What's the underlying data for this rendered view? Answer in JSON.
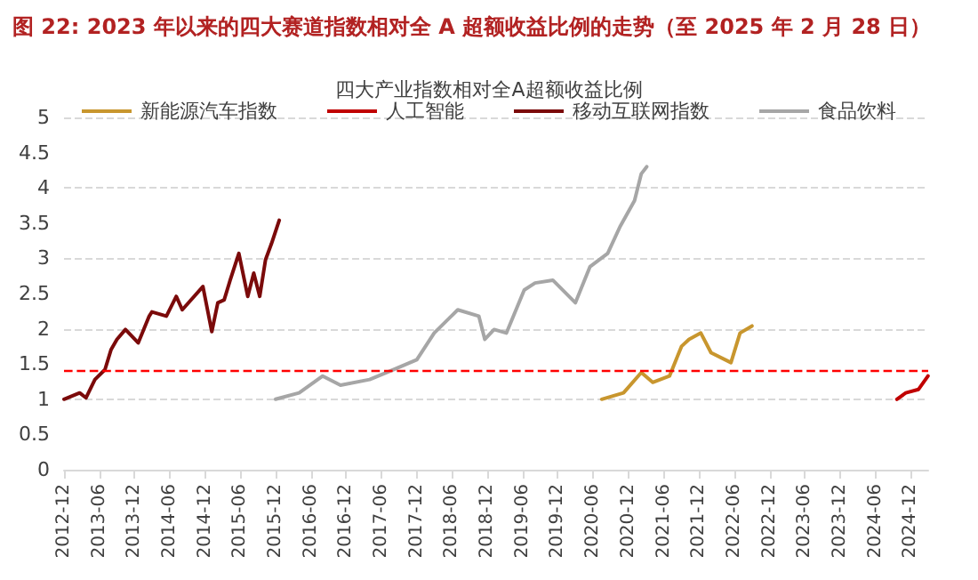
{
  "chart_data": {
    "type": "line",
    "title": "图 22: 2023 年以来的四大赛道指数相对全 A 超额收益比例的走势（至 2025 年 2 月 28 日）",
    "subtitle": "四大产业指数相对全A超额收益比例",
    "series": [
      {
        "name": "新能源汽车指数",
        "color": "#c8962e",
        "x": [
          "2020-07-15",
          "2020-11-05",
          "2021-02-05",
          "2021-04-05",
          "2021-07-01",
          "2021-09-01",
          "2021-10-10",
          "2021-12-10",
          "2022-02-01",
          "2022-05-15",
          "2022-07-01",
          "2022-09-01"
        ],
        "values": [
          1.0,
          1.09,
          1.38,
          1.24,
          1.33,
          1.75,
          1.85,
          1.94,
          1.66,
          1.52,
          1.94,
          2.04
        ]
      },
      {
        "name": "人工智能",
        "color": "#c00000",
        "x": [
          "2024-09-20",
          "2024-11-05",
          "2025-01-10",
          "2025-02-28"
        ],
        "values": [
          1.0,
          1.09,
          1.14,
          1.33
        ]
      },
      {
        "name": "移动互联网指数",
        "color": "#7b0a0a",
        "x": [
          "2012-12-01",
          "2013-02-20",
          "2013-03-25",
          "2013-05-10",
          "2013-07-01",
          "2013-08-01",
          "2013-09-01",
          "2013-10-15",
          "2013-12-20",
          "2014-02-15",
          "2014-03-01",
          "2014-05-15",
          "2014-07-05",
          "2014-08-05",
          "2014-11-20",
          "2015-01-05",
          "2015-02-05",
          "2015-03-10",
          "2015-04-10",
          "2015-05-25",
          "2015-07-10",
          "2015-08-10",
          "2015-09-10",
          "2015-10-10",
          "2015-11-10",
          "2015-12-20"
        ],
        "values": [
          1.0,
          1.09,
          1.02,
          1.28,
          1.42,
          1.7,
          1.85,
          1.99,
          1.8,
          2.18,
          2.24,
          2.18,
          2.46,
          2.27,
          2.6,
          1.96,
          2.37,
          2.41,
          2.69,
          3.07,
          2.46,
          2.79,
          2.46,
          2.98,
          3.21,
          3.54
        ]
      },
      {
        "name": "食品饮料",
        "color": "#a6a6a6",
        "x": [
          "2015-12-01",
          "2016-04-01",
          "2016-08-01",
          "2016-11-01",
          "2017-04-01",
          "2017-08-01",
          "2017-12-01",
          "2018-03-01",
          "2018-07-01",
          "2018-10-18",
          "2018-11-18",
          "2019-01-05",
          "2019-03-10",
          "2019-06-10",
          "2019-08-05",
          "2019-11-05",
          "2020-03-01",
          "2020-05-15",
          "2020-08-15",
          "2020-10-18",
          "2021-01-01",
          "2021-02-05",
          "2021-03-05"
        ],
        "values": [
          1.0,
          1.09,
          1.33,
          1.2,
          1.28,
          1.42,
          1.56,
          1.94,
          2.27,
          2.18,
          1.85,
          1.99,
          1.94,
          2.55,
          2.65,
          2.69,
          2.37,
          2.88,
          3.07,
          3.45,
          3.82,
          4.2,
          4.3
        ]
      }
    ],
    "xlim": [
      "2012-12",
      "2025-03"
    ],
    "xticks": [
      "2012-12",
      "2013-06",
      "2013-12",
      "2014-06",
      "2014-12",
      "2015-06",
      "2015-12",
      "2016-06",
      "2016-12",
      "2017-06",
      "2017-12",
      "2018-06",
      "2018-12",
      "2019-06",
      "2019-12",
      "2020-06",
      "2020-12",
      "2021-06",
      "2021-12",
      "2022-06",
      "2022-12",
      "2023-06",
      "2023-12",
      "2024-06",
      "2024-12"
    ],
    "ylim": [
      0,
      5
    ],
    "yticks": [
      0,
      0.5,
      1,
      1.5,
      2,
      2.5,
      3,
      3.5,
      4,
      4.5,
      5
    ],
    "ref_lines": [
      {
        "axis": "y",
        "value": 1.4,
        "color": "#ff0000",
        "line_style": "dashed"
      }
    ],
    "grid": "y",
    "legend": "top",
    "marker": "none",
    "line_style": "solid"
  }
}
